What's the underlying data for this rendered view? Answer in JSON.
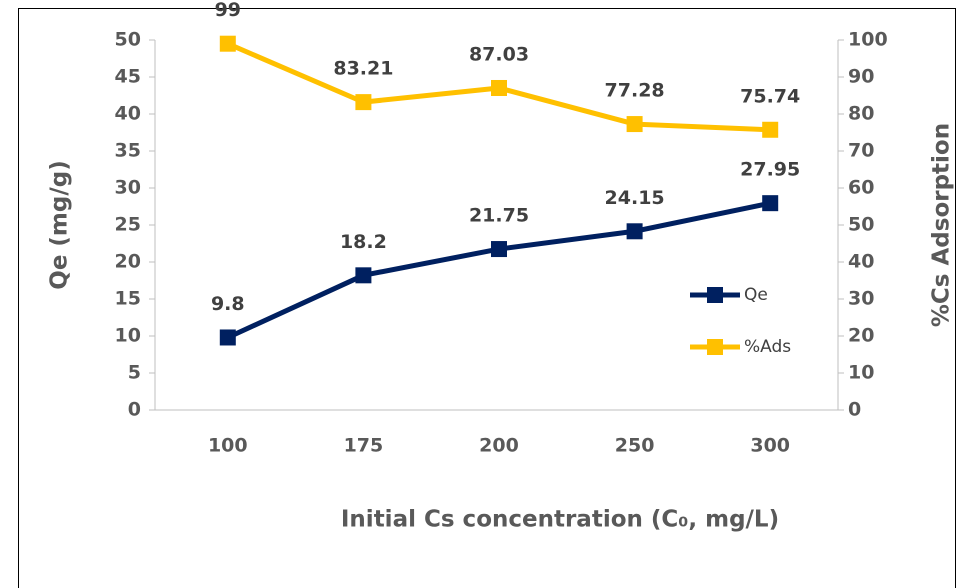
{
  "chart_data": {
    "type": "line",
    "categories": [
      "100",
      "175",
      "200",
      "250",
      "300"
    ],
    "x_label": "Initial Cs concentration (C₀, mg/L)",
    "y_label": "Qe (mg/g)",
    "y2_label": "%Cs Adsorption",
    "ylim": [
      0,
      50
    ],
    "yticks": [
      0,
      5,
      10,
      15,
      20,
      25,
      30,
      35,
      40,
      45,
      50
    ],
    "y2lim": [
      0,
      100
    ],
    "y2ticks": [
      0,
      10,
      20,
      30,
      40,
      50,
      60,
      70,
      80,
      90,
      100
    ],
    "legend": "right",
    "series": [
      {
        "name": "Qe",
        "color": "#002060",
        "axis": "y",
        "values": [
          9.8,
          18.2,
          21.75,
          24.15,
          27.95
        ]
      },
      {
        "name": "%Ads",
        "color": "#ffc000",
        "axis": "y2",
        "values": [
          99,
          83.21,
          87.03,
          77.28,
          75.74
        ]
      }
    ]
  }
}
